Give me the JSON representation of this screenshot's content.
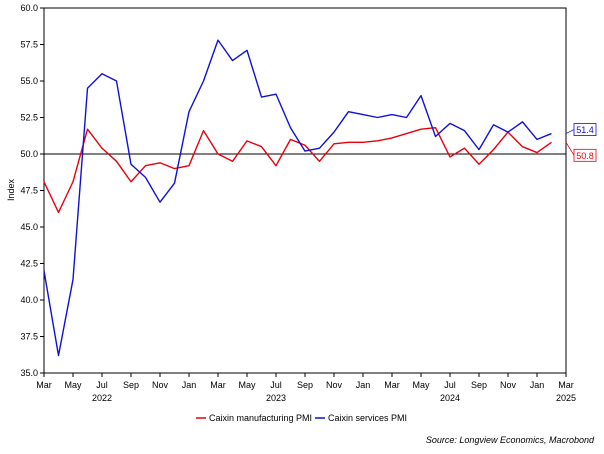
{
  "chart_data": {
    "type": "line",
    "ylabel": "Index",
    "ylim": [
      35.0,
      60.0
    ],
    "yticks": [
      "60.0",
      "57.5",
      "55.0",
      "52.5",
      "50.0",
      "47.5",
      "45.0",
      "42.5",
      "40.0",
      "37.5",
      "35.0"
    ],
    "x_start": "2022-03",
    "x_end": "2025-03",
    "xticks": [
      {
        "label": "Mar",
        "month": "2022-03"
      },
      {
        "label": "May",
        "month": "2022-05"
      },
      {
        "label": "Jul",
        "month": "2022-07"
      },
      {
        "label": "Sep",
        "month": "2022-09"
      },
      {
        "label": "Nov",
        "month": "2022-11"
      },
      {
        "label": "Jan",
        "month": "2023-01"
      },
      {
        "label": "Mar",
        "month": "2023-03"
      },
      {
        "label": "May",
        "month": "2023-05"
      },
      {
        "label": "Jul",
        "month": "2023-07"
      },
      {
        "label": "Sep",
        "month": "2023-09"
      },
      {
        "label": "Nov",
        "month": "2023-11"
      },
      {
        "label": "Jan",
        "month": "2024-01"
      },
      {
        "label": "Mar",
        "month": "2024-03"
      },
      {
        "label": "May",
        "month": "2024-05"
      },
      {
        "label": "Jul",
        "month": "2024-07"
      },
      {
        "label": "Sep",
        "month": "2024-09"
      },
      {
        "label": "Nov",
        "month": "2024-11"
      },
      {
        "label": "Jan",
        "month": "2025-01"
      },
      {
        "label": "Mar",
        "month": "2025-03"
      }
    ],
    "year_labels": [
      {
        "label": "2022",
        "month": "2022-07"
      },
      {
        "label": "2023",
        "month": "2023-07"
      },
      {
        "label": "2024",
        "month": "2024-07"
      },
      {
        "label": "2025",
        "month": "2025-03"
      }
    ],
    "reference_line": 50.0,
    "months": [
      "2022-03",
      "2022-04",
      "2022-05",
      "2022-06",
      "2022-07",
      "2022-08",
      "2022-09",
      "2022-10",
      "2022-11",
      "2022-12",
      "2023-01",
      "2023-02",
      "2023-03",
      "2023-04",
      "2023-05",
      "2023-06",
      "2023-07",
      "2023-08",
      "2023-09",
      "2023-10",
      "2023-11",
      "2023-12",
      "2024-01",
      "2024-02",
      "2024-03",
      "2024-04",
      "2024-05",
      "2024-06",
      "2024-07",
      "2024-08",
      "2024-09",
      "2024-10",
      "2024-11",
      "2024-12",
      "2025-01",
      "2025-02"
    ],
    "series": [
      {
        "name": "Caixin manufacturing PMI",
        "color": "#e8000b",
        "values": [
          48.1,
          46.0,
          48.1,
          51.7,
          50.4,
          49.5,
          48.1,
          49.2,
          49.4,
          49.0,
          49.2,
          51.6,
          50.0,
          49.5,
          50.9,
          50.5,
          49.2,
          51.0,
          50.6,
          49.5,
          50.7,
          50.8,
          50.8,
          50.9,
          51.1,
          51.4,
          51.7,
          51.8,
          49.8,
          50.4,
          49.3,
          50.3,
          51.5,
          50.5,
          50.1,
          50.8
        ],
        "end_label": "50.8"
      },
      {
        "name": "Caixin services PMI",
        "color": "#1010d8",
        "values": [
          42.0,
          36.2,
          41.4,
          54.5,
          55.5,
          55.0,
          49.3,
          48.4,
          46.7,
          48.0,
          52.9,
          55.0,
          57.8,
          56.4,
          57.1,
          53.9,
          54.1,
          51.8,
          50.2,
          50.4,
          51.5,
          52.9,
          52.7,
          52.5,
          52.7,
          52.5,
          54.0,
          51.2,
          52.1,
          51.6,
          50.3,
          52.0,
          51.5,
          52.2,
          51.0,
          51.4
        ],
        "end_label": "51.4"
      }
    ],
    "legend_position": "bottom-center",
    "source": "Source: Longview Economics, Macrobond"
  }
}
